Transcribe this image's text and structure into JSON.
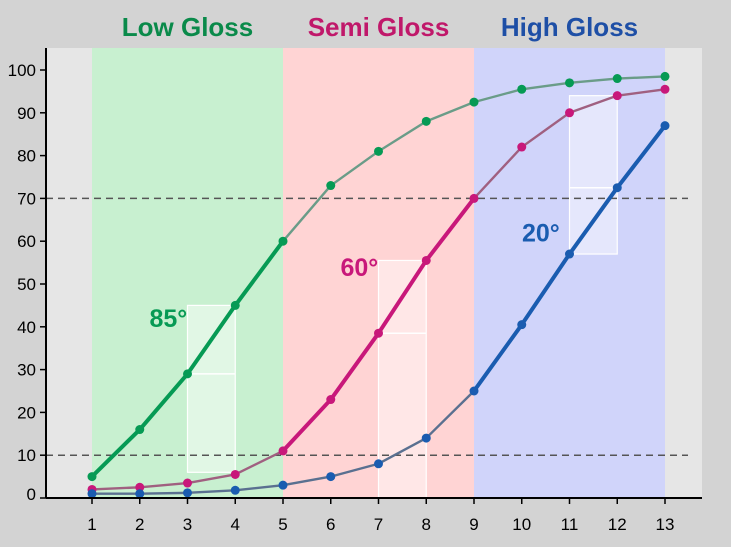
{
  "chart_data": {
    "type": "line",
    "title": "",
    "xlabel": "",
    "ylabel": "",
    "xlim": [
      0.1,
      13.8
    ],
    "ylim": [
      0,
      102
    ],
    "x_ticks": [
      1,
      2,
      3,
      4,
      5,
      6,
      7,
      8,
      9,
      10,
      11,
      12,
      13
    ],
    "y_ticks": [
      0,
      10,
      20,
      30,
      40,
      50,
      60,
      70,
      80,
      90,
      100
    ],
    "grid": false,
    "reference_lines": [
      70,
      10
    ],
    "regions": [
      {
        "label": "Low Gloss",
        "x_start": 1,
        "x_end": 5,
        "color": "#c8f0d0",
        "text_color": "#0a8a4a"
      },
      {
        "label": "Semi Gloss",
        "x_start": 5,
        "x_end": 9,
        "color": "#ffd4d4",
        "text_color": "#c0186a"
      },
      {
        "label": "High Gloss",
        "x_start": 9,
        "x_end": 13,
        "color": "#d0d4fa",
        "text_color": "#1e4fa6"
      }
    ],
    "series": [
      {
        "name": "85°",
        "color": "#069a54",
        "dim_color": "#6a9c88",
        "highlight_range": [
          1,
          5
        ],
        "label_at": [
          2.6,
          42
        ],
        "x": [
          1,
          2,
          3,
          4,
          5,
          6,
          7,
          8,
          9,
          10,
          11,
          12,
          13
        ],
        "y": [
          5,
          16,
          29,
          45,
          60,
          73,
          81,
          88,
          92.5,
          95.5,
          97,
          98,
          98.5
        ]
      },
      {
        "name": "60°",
        "color": "#c8187a",
        "dim_color": "#a06080",
        "highlight_range": [
          5,
          9
        ],
        "label_at": [
          6.6,
          54
        ],
        "x": [
          1,
          2,
          3,
          4,
          5,
          6,
          7,
          8,
          9,
          10,
          11,
          12,
          13
        ],
        "y": [
          2,
          2.5,
          3.5,
          5.5,
          11,
          23,
          38.5,
          55.5,
          70,
          82,
          90,
          94,
          95.5
        ]
      },
      {
        "name": "20°",
        "color": "#1a5cb0",
        "dim_color": "#5a7090",
        "highlight_range": [
          9,
          13
        ],
        "label_at": [
          10.4,
          62
        ],
        "x": [
          1,
          2,
          3,
          4,
          5,
          6,
          7,
          8,
          9,
          10,
          11,
          12,
          13
        ],
        "y": [
          1,
          1,
          1.2,
          1.8,
          3,
          5,
          8,
          14,
          25,
          40.5,
          57,
          72.5,
          87
        ]
      }
    ],
    "highlight_boxes": [
      {
        "x_start": 3,
        "x_end": 4,
        "y_low": 6,
        "y_high": 45,
        "y_mid": 29
      },
      {
        "x_start": 7,
        "x_end": 8,
        "y_low": 0,
        "y_high": 55.5,
        "y_mid": 38.5
      },
      {
        "x_start": 11,
        "x_end": 12,
        "y_low": 57,
        "y_high": 94,
        "y_mid": 72.5
      }
    ]
  }
}
